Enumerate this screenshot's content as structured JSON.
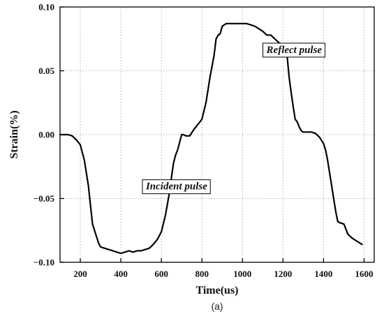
{
  "chart_data": {
    "type": "line",
    "xlabel": "Time(us)",
    "ylabel": "Strain(%)",
    "caption": "(a)",
    "xlim": [
      100,
      1650
    ],
    "ylim": [
      -0.1,
      0.1
    ],
    "xticks": [
      200,
      400,
      600,
      800,
      1000,
      1200,
      1400,
      1600
    ],
    "xtick_labels": [
      "200",
      "400",
      "600",
      "800",
      "1000",
      "1200",
      "1400",
      "1600"
    ],
    "yticks": [
      0.1,
      0.05,
      0.0,
      -0.05,
      -0.1
    ],
    "ytick_labels": [
      "0.10",
      "0.05",
      "0.00",
      "−0.05",
      "−0.10"
    ],
    "grid": true,
    "line_color": "#000000",
    "annotations": [
      {
        "text": "Reflect pulse",
        "x": 1255,
        "y": 0.064
      },
      {
        "text": "Incident pulse",
        "x": 675,
        "y": -0.043
      }
    ],
    "series": [
      {
        "x": [
          100,
          120,
          140,
          160,
          180,
          200,
          220,
          240,
          250,
          260,
          270,
          280,
          290,
          300,
          320,
          340,
          360,
          380,
          400,
          420,
          440,
          460,
          480,
          500,
          520,
          540,
          560,
          580,
          600,
          620,
          640,
          650,
          660,
          670,
          680,
          690,
          700,
          710,
          720,
          740,
          760,
          780,
          800,
          820,
          840,
          860,
          870,
          880,
          890,
          900,
          920,
          940,
          960,
          980,
          1000,
          1020,
          1040,
          1060,
          1080,
          1100,
          1120,
          1140,
          1160,
          1180,
          1200,
          1220,
          1230,
          1240,
          1250,
          1260,
          1270,
          1280,
          1290,
          1300,
          1320,
          1340,
          1360,
          1380,
          1400,
          1410,
          1420,
          1430,
          1440,
          1450,
          1460,
          1470,
          1480,
          1500,
          1520,
          1540,
          1560,
          1580,
          1590
        ],
        "y": [
          0.0,
          0.0,
          0.0,
          -0.001,
          -0.004,
          -0.008,
          -0.02,
          -0.04,
          -0.055,
          -0.07,
          -0.075,
          -0.08,
          -0.085,
          -0.088,
          -0.089,
          -0.09,
          -0.091,
          -0.092,
          -0.093,
          -0.092,
          -0.091,
          -0.092,
          -0.091,
          -0.091,
          -0.09,
          -0.089,
          -0.086,
          -0.082,
          -0.076,
          -0.063,
          -0.045,
          -0.033,
          -0.022,
          -0.016,
          -0.012,
          -0.006,
          0.0,
          0.0,
          -0.001,
          -0.001,
          0.004,
          0.008,
          0.012,
          0.025,
          0.045,
          0.062,
          0.075,
          0.078,
          0.079,
          0.085,
          0.087,
          0.087,
          0.087,
          0.087,
          0.087,
          0.087,
          0.086,
          0.085,
          0.083,
          0.081,
          0.078,
          0.078,
          0.075,
          0.072,
          0.07,
          0.062,
          0.045,
          0.033,
          0.022,
          0.012,
          0.01,
          0.006,
          0.003,
          0.002,
          0.002,
          0.002,
          0.001,
          -0.002,
          -0.007,
          -0.012,
          -0.02,
          -0.03,
          -0.04,
          -0.05,
          -0.06,
          -0.068,
          -0.069,
          -0.07,
          -0.078,
          -0.081,
          -0.083,
          -0.085,
          -0.086
        ]
      }
    ]
  }
}
